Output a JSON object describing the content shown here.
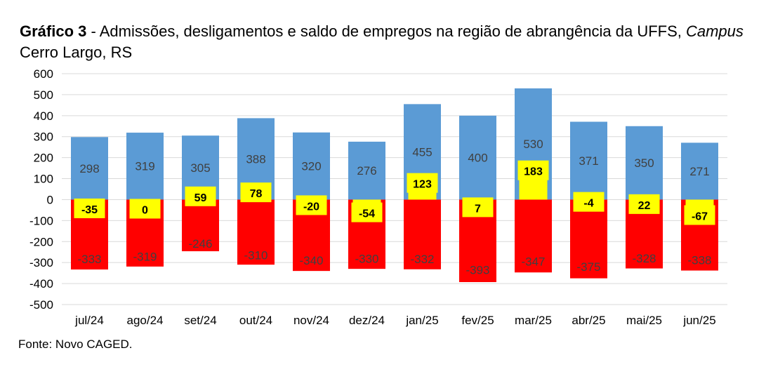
{
  "title": {
    "label": "Gráfico 3",
    "separator": " - ",
    "text_part1": "Admissões, desligamentos e saldo de empregos na região de abrangência da UFFS, ",
    "italic": "Campus",
    "text_part2": " Cerro Largo, RS"
  },
  "source": "Fonte: Novo CAGED.",
  "chart_data": {
    "type": "bar",
    "title": "Admissões, desligamentos e saldo de empregos na região de abrangência da UFFS, Campus Cerro Largo, RS",
    "categories": [
      "jul/24",
      "ago/24",
      "set/24",
      "out/24",
      "nov/24",
      "dez/24",
      "jan/25",
      "fev/25",
      "mar/25",
      "abr/25",
      "mai/25",
      "jun/25"
    ],
    "series": [
      {
        "values": [
          298,
          319,
          305,
          388,
          320,
          276,
          455,
          400,
          530,
          371,
          350,
          271
        ],
        "color": "#5b9bd5"
      },
      {
        "values": [
          -333,
          -319,
          -246,
          -310,
          -340,
          -330,
          -332,
          -393,
          -347,
          -375,
          -328,
          -338
        ],
        "color": "#ff0000"
      },
      {
        "values": [
          -35,
          0,
          59,
          78,
          -20,
          -54,
          123,
          7,
          183,
          -4,
          22,
          -67
        ],
        "color": "#ffff00"
      }
    ],
    "ylim": [
      -500,
      600
    ],
    "yticks": [
      600,
      500,
      400,
      300,
      200,
      100,
      0,
      -100,
      -200,
      -300,
      -400,
      -500
    ],
    "grid": true,
    "legend": "none"
  }
}
